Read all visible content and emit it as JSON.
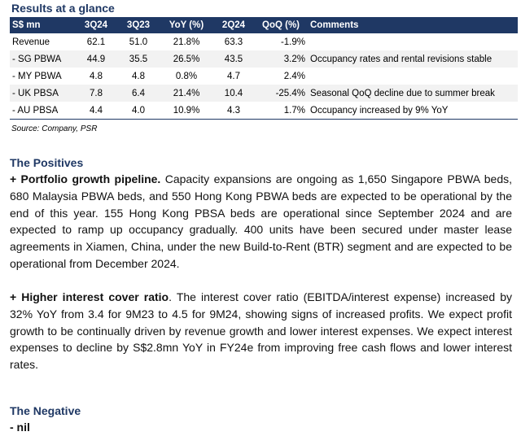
{
  "title": "Results at a glance",
  "table": {
    "headers": [
      "S$ mn",
      "3Q24",
      "3Q23",
      "YoY (%)",
      "2Q24",
      "QoQ (%)",
      "Comments"
    ],
    "rows": [
      [
        "Revenue",
        "62.1",
        "51.0",
        "21.8%",
        "63.3",
        "-1.9%",
        ""
      ],
      [
        "- SG PBWA",
        "44.9",
        "35.5",
        "26.5%",
        "43.5",
        "3.2%",
        "Occupancy rates and rental revisions stable"
      ],
      [
        "- MY PBWA",
        "4.8",
        "4.8",
        "0.8%",
        "4.7",
        "2.4%",
        ""
      ],
      [
        "- UK PBSA",
        "7.8",
        "6.4",
        "21.4%",
        "10.4",
        "-25.4%",
        "Seasonal QoQ decline due to summer break"
      ],
      [
        "- AU PBSA",
        "4.4",
        "4.0",
        "10.9%",
        "4.3",
        "1.7%",
        "Occupancy increased by 9% YoY"
      ]
    ]
  },
  "source": "Source: Company, PSR",
  "positives": {
    "heading": "The Positives",
    "items": [
      {
        "lead": "+ Portfolio growth pipeline.",
        "text": " Capacity expansions are ongoing as 1,650 Singapore PBWA beds, 680 Malaysia PBWA beds, and 550 Hong Kong PBWA beds are expected to be operational by the end of this year. 155 Hong Kong PBSA beds are operational since September 2024 and are expected to ramp up occupancy gradually. 400 units have been secured under master lease agreements in Xiamen, China, under the new Build-to-Rent (BTR) segment and are expected to be operational from December 2024."
      },
      {
        "lead": "+ Higher interest cover ratio",
        "text": ". The interest cover ratio (EBITDA/interest expense) increased by 32% YoY from 3.4 for 9M23 to 4.5 for 9M24, showing signs of increased profits. We expect profit growth to be continually driven by revenue growth and lower interest expenses. We expect interest expenses to decline by S$2.8mn YoY in FY24e from improving free cash flows and lower interest rates."
      }
    ]
  },
  "negative": {
    "heading": "The Negative",
    "items": [
      {
        "lead": "- nil",
        "text": ""
      }
    ]
  }
}
